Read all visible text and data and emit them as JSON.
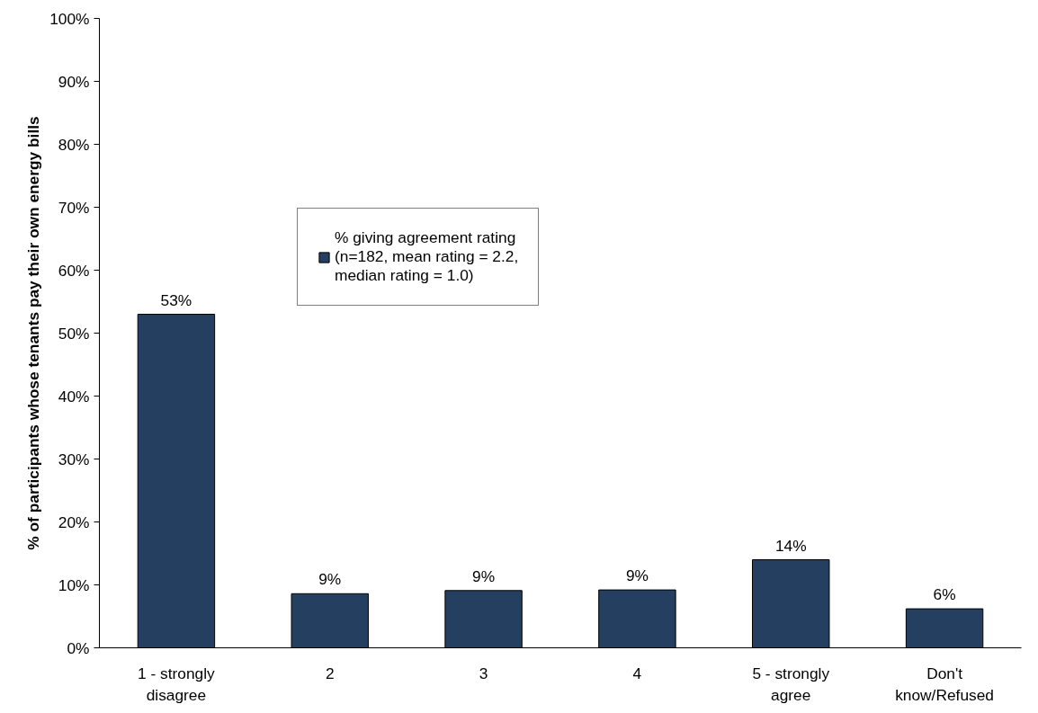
{
  "chart_data": {
    "type": "bar",
    "ylabel": "% of participants whose tenants pay their own energy bills",
    "categories": [
      "1 - strongly\ndisagree",
      "2",
      "3",
      "4",
      "5 - strongly\nagree",
      "Don't\nknow/Refused"
    ],
    "series": [
      {
        "name": "% giving agreement rating\n(n=182, mean rating = 2.2,\nmedian rating = 1.0)",
        "color": "#243f60",
        "values": [
          53,
          8.6,
          9.1,
          9.2,
          14,
          6.2
        ],
        "value_labels": [
          "53%",
          "9%",
          "9%",
          "9%",
          "14%",
          "6%"
        ]
      }
    ],
    "ylim": [
      0,
      100
    ],
    "yticks": [
      {
        "value": 0,
        "label": "0%"
      },
      {
        "value": 10,
        "label": "10%"
      },
      {
        "value": 20,
        "label": "20%"
      },
      {
        "value": 30,
        "label": "30%"
      },
      {
        "value": 40,
        "label": "40%"
      },
      {
        "value": 50,
        "label": "50%"
      },
      {
        "value": 60,
        "label": "60%"
      },
      {
        "value": 70,
        "label": "70%"
      },
      {
        "value": 80,
        "label": "80%"
      },
      {
        "value": 90,
        "label": "90%"
      },
      {
        "value": 100,
        "label": "100%"
      }
    ],
    "grid": false,
    "legend": "top"
  }
}
